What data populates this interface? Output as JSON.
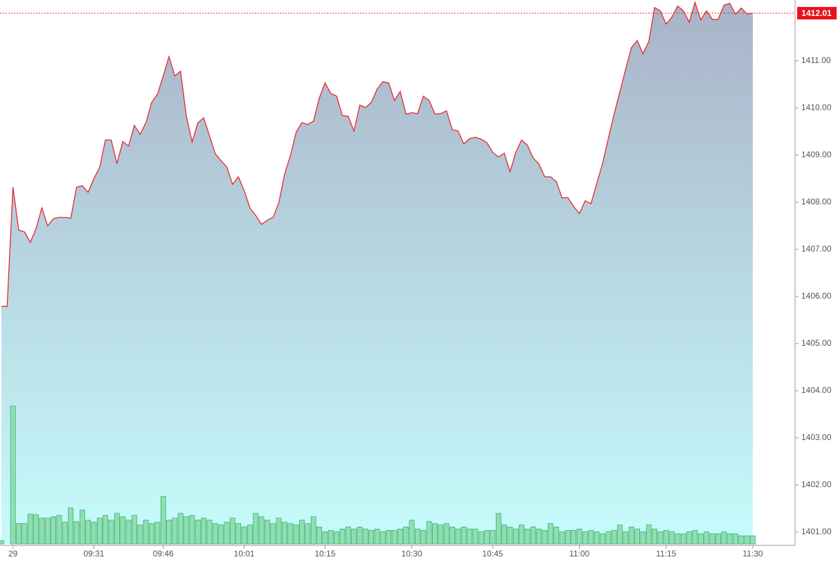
{
  "chart_data": {
    "type": "area",
    "categories": [
      null,
      null,
      "29",
      null,
      null,
      null,
      null,
      null,
      null,
      null,
      null,
      null,
      null,
      null,
      null,
      null,
      "09:31",
      null,
      null,
      null,
      null,
      null,
      null,
      null,
      null,
      null,
      null,
      null,
      "09:46",
      null,
      null,
      null,
      null,
      null,
      null,
      null,
      null,
      null,
      null,
      null,
      null,
      null,
      "10:01",
      null,
      null,
      null,
      null,
      null,
      null,
      null,
      null,
      null,
      null,
      null,
      null,
      null,
      "10:15",
      null,
      null,
      null,
      null,
      null,
      null,
      null,
      null,
      null,
      null,
      null,
      null,
      null,
      null,
      "10:30",
      null,
      null,
      null,
      null,
      null,
      null,
      null,
      null,
      null,
      null,
      null,
      null,
      null,
      "10:45",
      null,
      null,
      null,
      null,
      null,
      null,
      null,
      null,
      null,
      null,
      null,
      null,
      null,
      null,
      "11:00",
      null,
      null,
      null,
      null,
      null,
      null,
      null,
      null,
      null,
      null,
      null,
      null,
      null,
      null,
      "11:15",
      null,
      null,
      null,
      null,
      null,
      null,
      null,
      null,
      null,
      null,
      null,
      null,
      null,
      null,
      "11:30"
    ],
    "series": [
      {
        "color": "#e8262b",
        "values": [
          1405.79,
          1405.79,
          1408.32,
          1407.41,
          1407.37,
          1407.15,
          1407.44,
          1407.88,
          1407.5,
          1407.65,
          1407.68,
          1407.68,
          1407.66,
          1408.32,
          1408.35,
          1408.21,
          1408.5,
          1408.74,
          1409.32,
          1409.32,
          1408.82,
          1409.29,
          1409.19,
          1409.63,
          1409.44,
          1409.69,
          1410.12,
          1410.29,
          1410.68,
          1411.09,
          1410.68,
          1410.78,
          1409.82,
          1409.28,
          1409.69,
          1409.79,
          1409.41,
          1409.03,
          1408.88,
          1408.75,
          1408.38,
          1408.54,
          1408.25,
          1407.88,
          1407.72,
          1407.53,
          1407.62,
          1407.68,
          1407.99,
          1408.6,
          1408.99,
          1409.49,
          1409.69,
          1409.65,
          1409.72,
          1410.21,
          1410.53,
          1410.31,
          1410.25,
          1409.84,
          1409.82,
          1409.51,
          1410.06,
          1410.01,
          1410.12,
          1410.4,
          1410.56,
          1410.53,
          1410.16,
          1410.35,
          1409.87,
          1409.9,
          1409.88,
          1410.25,
          1410.16,
          1409.87,
          1409.88,
          1409.94,
          1409.54,
          1409.51,
          1409.24,
          1409.35,
          1409.38,
          1409.34,
          1409.26,
          1409.06,
          1408.96,
          1409.04,
          1408.65,
          1409.06,
          1409.32,
          1409.21,
          1408.94,
          1408.81,
          1408.54,
          1408.54,
          1408.44,
          1408.09,
          1408.1,
          1407.91,
          1407.76,
          1408.03,
          1407.97,
          1408.4,
          1408.82,
          1409.35,
          1409.87,
          1410.34,
          1410.82,
          1411.28,
          1411.43,
          1411.15,
          1411.41,
          1412.13,
          1412.06,
          1411.78,
          1411.93,
          1412.16,
          1412.06,
          1411.82,
          1412.24,
          1411.87,
          1412.06,
          1411.88,
          1411.88,
          1412.18,
          1412.22,
          1411.99,
          1412.12,
          1411.99,
          1412.01
        ]
      },
      {
        "type": "bar",
        "axis": "y2",
        "color": "#8fdfb1",
        "values": [
          5,
          0,
          203,
          30,
          30,
          44,
          43,
          38,
          38,
          40,
          42,
          32,
          53,
          33,
          50,
          35,
          32,
          38,
          42,
          35,
          45,
          40,
          35,
          42,
          28,
          35,
          30,
          32,
          70,
          35,
          38,
          45,
          40,
          42,
          35,
          38,
          35,
          30,
          28,
          32,
          38,
          30,
          25,
          28,
          45,
          40,
          35,
          30,
          38,
          32,
          30,
          28,
          35,
          30,
          40,
          25,
          18,
          20,
          18,
          22,
          25,
          22,
          25,
          22,
          20,
          22,
          18,
          20,
          20,
          22,
          25,
          35,
          22,
          20,
          33,
          30,
          28,
          30,
          25,
          22,
          25,
          22,
          22,
          18,
          20,
          20,
          45,
          28,
          25,
          22,
          28,
          22,
          25,
          22,
          20,
          30,
          25,
          18,
          20,
          20,
          22,
          18,
          20,
          18,
          15,
          18,
          20,
          28,
          18,
          25,
          22,
          18,
          28,
          22,
          18,
          20,
          18,
          15,
          15,
          18,
          20,
          15,
          18,
          15,
          15,
          18,
          15,
          15,
          12,
          12,
          12
        ]
      }
    ],
    "ylim": [
      1400.75,
      1412.29
    ],
    "yticks": [
      {
        "value": 1401,
        "label": "1401.00"
      },
      {
        "value": 1402,
        "label": "1402.00"
      },
      {
        "value": 1403,
        "label": "1403.00"
      },
      {
        "value": 1404,
        "label": "1404.00"
      },
      {
        "value": 1405,
        "label": "1405.00"
      },
      {
        "value": 1406,
        "label": "1406.00"
      },
      {
        "value": 1407,
        "label": "1407.00"
      },
      {
        "value": 1408,
        "label": "1408.00"
      },
      {
        "value": 1409,
        "label": "1409.00"
      },
      {
        "value": 1410,
        "label": "1410.00"
      },
      {
        "value": 1411,
        "label": "1411.00"
      }
    ],
    "y2lim": [
      0,
      800
    ],
    "last_price": 1412.01
  }
}
